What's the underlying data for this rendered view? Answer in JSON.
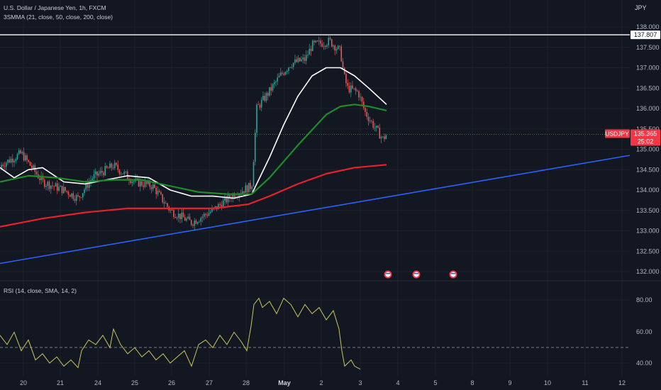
{
  "header": {
    "symbol_title": "U.S. Dollar / Japanese Yen, 1h, FXCM",
    "indicator": "3SMMA (21, close, 50, close, 200, close)",
    "currency": "JPY"
  },
  "rsi_panel": {
    "label": "RSI (14, close, SMA, 14, 2)"
  },
  "price_tag": {
    "symbol": "USDJPY",
    "price": "135.365",
    "countdown": "25:02"
  },
  "level_tag": "137.807",
  "colors": {
    "background": "#131722",
    "up_candle": "#26a69a",
    "down_candle": "#ef5350",
    "smma21": "#ffffff",
    "smma50": "#1f8c2a",
    "smma200": "#e8202a",
    "trendline": "#2962ff",
    "rsi": "#c8c65a",
    "price_tag": "#f23645"
  },
  "chart_data": [
    {
      "type": "candlestick",
      "yaxis": {
        "ticks": [
          "138.000",
          "137.500",
          "137.000",
          "136.500",
          "136.000",
          "135.500",
          "135.000",
          "134.500",
          "134.000",
          "133.500",
          "133.000",
          "132.500",
          "132.000"
        ],
        "range": [
          131.75,
          138.4
        ]
      },
      "xaxis": {
        "ticks": [
          "20",
          "21",
          "24",
          "25",
          "26",
          "27",
          "28",
          "May",
          "2",
          "3",
          "4",
          "5",
          "8",
          "9",
          "10",
          "11",
          "12"
        ]
      },
      "candles_summary": [
        {
          "period": "20",
          "open": 134.2,
          "high": 134.95,
          "low": 134.05,
          "close": 134.7
        },
        {
          "period": "21",
          "open": 134.7,
          "high": 134.8,
          "low": 133.7,
          "close": 133.95
        },
        {
          "period": "24",
          "open": 133.95,
          "high": 134.6,
          "low": 133.5,
          "close": 134.3
        },
        {
          "period": "25",
          "open": 134.3,
          "high": 134.75,
          "low": 133.65,
          "close": 133.75
        },
        {
          "period": "26",
          "open": 133.75,
          "high": 134.0,
          "low": 133.05,
          "close": 133.55
        },
        {
          "period": "27",
          "open": 133.55,
          "high": 134.2,
          "low": 133.1,
          "close": 133.9
        },
        {
          "period": "28",
          "open": 133.9,
          "high": 136.5,
          "low": 133.35,
          "close": 136.3
        },
        {
          "period": "May",
          "open": 136.3,
          "high": 137.5,
          "low": 136.1,
          "close": 137.2
        },
        {
          "period": "2",
          "open": 137.2,
          "high": 137.75,
          "low": 136.4,
          "close": 136.6
        },
        {
          "period": "3",
          "open": 136.6,
          "high": 136.75,
          "low": 135.1,
          "close": 135.365
        }
      ],
      "series": [
        {
          "indicator": "SMMA 21",
          "color": "#ffffff",
          "points": [
            [
              0,
              134.55
            ],
            [
              20,
              134.3
            ],
            [
              40,
              134.5
            ],
            [
              60,
              134.55
            ],
            [
              90,
              134.2
            ],
            [
              120,
              134.15
            ],
            [
              150,
              134.25
            ],
            [
              180,
              134.35
            ],
            [
              210,
              134.3
            ],
            [
              240,
              134.0
            ],
            [
              270,
              133.85
            ],
            [
              300,
              133.85
            ],
            [
              330,
              133.8
            ],
            [
              355,
              133.9
            ],
            [
              380,
              134.8
            ],
            [
              400,
              135.6
            ],
            [
              420,
              136.3
            ],
            [
              440,
              136.8
            ],
            [
              460,
              137.0
            ],
            [
              480,
              137.0
            ],
            [
              500,
              136.8
            ],
            [
              520,
              136.5
            ],
            [
              545,
              136.1
            ]
          ]
        },
        {
          "indicator": "SMMA 50",
          "color": "#1f8c2a",
          "points": [
            [
              0,
              134.2
            ],
            [
              40,
              134.35
            ],
            [
              80,
              134.3
            ],
            [
              120,
              134.2
            ],
            [
              160,
              134.25
            ],
            [
              200,
              134.25
            ],
            [
              240,
              134.1
            ],
            [
              280,
              133.95
            ],
            [
              320,
              133.9
            ],
            [
              355,
              133.9
            ],
            [
              380,
              134.3
            ],
            [
              420,
              135.1
            ],
            [
              460,
              135.85
            ],
            [
              480,
              136.05
            ],
            [
              500,
              136.1
            ],
            [
              520,
              136.05
            ],
            [
              545,
              135.95
            ]
          ]
        },
        {
          "indicator": "SMMA 200",
          "color": "#e8202a",
          "points": [
            [
              0,
              133.1
            ],
            [
              60,
              133.3
            ],
            [
              120,
              133.45
            ],
            [
              180,
              133.55
            ],
            [
              240,
              133.55
            ],
            [
              300,
              133.55
            ],
            [
              350,
              133.65
            ],
            [
              380,
              133.85
            ],
            [
              420,
              134.15
            ],
            [
              460,
              134.4
            ],
            [
              500,
              134.55
            ],
            [
              545,
              134.62
            ]
          ]
        },
        {
          "indicator": "Trendline",
          "color": "#2962ff",
          "points": [
            [
              0,
              132.2
            ],
            [
              888,
              134.85
            ]
          ]
        },
        {
          "indicator": "Horizontal level",
          "color": "#ffffff",
          "points": [
            [
              0,
              137.807
            ],
            [
              888,
              137.807
            ]
          ]
        }
      ]
    },
    {
      "type": "line",
      "yaxis": {
        "ticks": [
          "80.00",
          "60.00",
          "40.00"
        ],
        "range": [
          35,
          88
        ]
      },
      "series": [
        {
          "indicator": "RSI",
          "color": "#c8c65a",
          "points": [
            [
              0,
              58
            ],
            [
              10,
              52
            ],
            [
              20,
              60
            ],
            [
              30,
              48
            ],
            [
              40,
              55
            ],
            [
              50,
              42
            ],
            [
              60,
              46
            ],
            [
              70,
              40
            ],
            [
              80,
              44
            ],
            [
              90,
              38
            ],
            [
              100,
              42
            ],
            [
              110,
              37
            ],
            [
              115,
              48
            ],
            [
              125,
              55
            ],
            [
              135,
              52
            ],
            [
              145,
              58
            ],
            [
              155,
              50
            ],
            [
              160,
              62
            ],
            [
              170,
              52
            ],
            [
              180,
              46
            ],
            [
              190,
              50
            ],
            [
              200,
              44
            ],
            [
              210,
              48
            ],
            [
              220,
              42
            ],
            [
              230,
              46
            ],
            [
              240,
              40
            ],
            [
              250,
              44
            ],
            [
              260,
              48
            ],
            [
              270,
              38
            ],
            [
              280,
              52
            ],
            [
              290,
              55
            ],
            [
              300,
              50
            ],
            [
              310,
              58
            ],
            [
              320,
              52
            ],
            [
              330,
              60
            ],
            [
              340,
              54
            ],
            [
              348,
              48
            ],
            [
              354,
              64
            ],
            [
              358,
              78
            ],
            [
              365,
              82
            ],
            [
              370,
              76
            ],
            [
              380,
              80
            ],
            [
              390,
              72
            ],
            [
              400,
              82
            ],
            [
              410,
              78
            ],
            [
              420,
              70
            ],
            [
              430,
              78
            ],
            [
              440,
              72
            ],
            [
              450,
              76
            ],
            [
              460,
              68
            ],
            [
              470,
              74
            ],
            [
              478,
              62
            ],
            [
              482,
              48
            ],
            [
              486,
              38
            ],
            [
              495,
              42
            ],
            [
              500,
              38
            ],
            [
              508,
              36
            ]
          ]
        }
      ]
    }
  ]
}
